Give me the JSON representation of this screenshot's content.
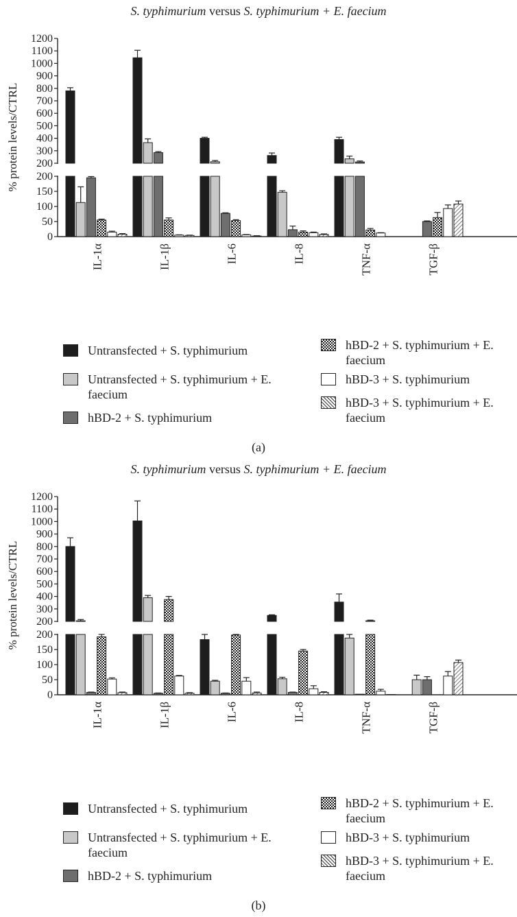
{
  "legend": {
    "black": "Untransfected + S. typhimurium",
    "light": "Untransfected + S. typhimurium + E. faecium",
    "dark": "hBD-2 + S. typhimurium",
    "check": "hBD-2 + S. typhimurium + E. faecium",
    "white": "hBD-3 + S. typhimurium",
    "hatch": "hBD-3 + S. typhimurium + E. faecium"
  },
  "colors": {
    "black": "#1d1d1d",
    "light": "#c8c8c8",
    "dark": "#6e6e6e",
    "white": "#ffffff",
    "pattern_dark": "#333333"
  },
  "chart_data": [
    {
      "type": "bar",
      "panel_label": "(a)",
      "title_parts": [
        "S. typhimurium",
        " versus ",
        "S. typhimurium + E. faecium"
      ],
      "ylabel": "% protein levels/CTRL",
      "yaxis_break": {
        "lower_range": [
          0,
          200
        ],
        "upper_range": [
          200,
          1200
        ]
      },
      "yticks_lower": [
        0,
        50,
        100,
        150,
        200
      ],
      "yticks_upper": [
        200,
        300,
        400,
        500,
        600,
        700,
        800,
        900,
        1000,
        1100,
        1200
      ],
      "categories": [
        "IL-1α",
        "IL-1β",
        "IL-6",
        "IL-8",
        "TNF-α",
        "TGF-β"
      ],
      "series": [
        {
          "name": "Untransfected + S. typhimurium",
          "values": [
            780,
            1045,
            400,
            262,
            390,
            0
          ],
          "errors": [
            25,
            60,
            8,
            20,
            18,
            0
          ]
        },
        {
          "name": "Untransfected + S. typhimurium + E. faecium",
          "values": [
            113,
            365,
            212,
            147,
            235,
            0
          ],
          "errors": [
            52,
            30,
            10,
            5,
            22,
            0
          ]
        },
        {
          "name": "hBD-2 + S. typhimurium",
          "values": [
            195,
            285,
            77,
            23,
            210,
            50
          ],
          "errors": [
            4,
            8,
            2,
            12,
            8,
            2
          ]
        },
        {
          "name": "hBD-2 + S. typhimurium + E. faecium",
          "values": [
            55,
            55,
            53,
            15,
            22,
            63
          ],
          "errors": [
            3,
            7,
            3,
            4,
            5,
            17
          ]
        },
        {
          "name": "hBD-3 + S. typhimurium",
          "values": [
            15,
            5,
            6,
            13,
            12,
            93
          ],
          "errors": [
            3,
            1,
            1,
            2,
            1,
            12
          ]
        },
        {
          "name": "hBD-3 + S. typhimurium + E. faecium",
          "values": [
            8,
            4,
            2,
            7,
            0,
            108
          ],
          "errors": [
            2,
            1,
            1,
            2,
            0,
            10
          ]
        }
      ]
    },
    {
      "type": "bar",
      "panel_label": "(b)",
      "title_parts": [
        "S. typhimurium",
        " versus ",
        "S. typhimurium + E. faecium"
      ],
      "ylabel": "% protein levels/CTRL",
      "yaxis_break": {
        "lower_range": [
          0,
          200
        ],
        "upper_range": [
          200,
          1200
        ]
      },
      "yticks_lower": [
        0,
        50,
        100,
        150,
        200
      ],
      "yticks_upper": [
        200,
        300,
        400,
        500,
        600,
        700,
        800,
        900,
        1000,
        1100,
        1200
      ],
      "categories": [
        "IL-1α",
        "IL-1β",
        "IL-6",
        "IL-8",
        "TNF-α",
        "TGF-β"
      ],
      "series": [
        {
          "name": "Untransfected + S. typhimurium",
          "values": [
            800,
            1005,
            183,
            248,
            355,
            0
          ],
          "errors": [
            70,
            160,
            25,
            5,
            65,
            0
          ]
        },
        {
          "name": "Untransfected + S. typhimurium + E. faecium",
          "values": [
            205,
            390,
            45,
            53,
            188,
            50
          ],
          "errors": [
            10,
            18,
            3,
            5,
            18,
            15
          ]
        },
        {
          "name": "hBD-2 + S. typhimurium",
          "values": [
            8,
            5,
            5,
            8,
            2,
            50
          ],
          "errors": [
            1,
            1,
            1,
            1,
            0,
            10
          ]
        },
        {
          "name": "hBD-2 + S. typhimurium + E. faecium",
          "values": [
            192,
            375,
            198,
            145,
            205,
            0
          ],
          "errors": [
            10,
            25,
            20,
            5,
            5,
            0
          ]
        },
        {
          "name": "hBD-3 + S. typhimurium",
          "values": [
            52,
            62,
            45,
            20,
            12,
            62
          ],
          "errors": [
            4,
            2,
            12,
            10,
            6,
            15
          ]
        },
        {
          "name": "hBD-3 + S. typhimurium + E. faecium",
          "values": [
            7,
            5,
            6,
            8,
            1,
            107
          ],
          "errors": [
            2,
            2,
            3,
            2,
            0,
            8
          ]
        }
      ]
    }
  ]
}
